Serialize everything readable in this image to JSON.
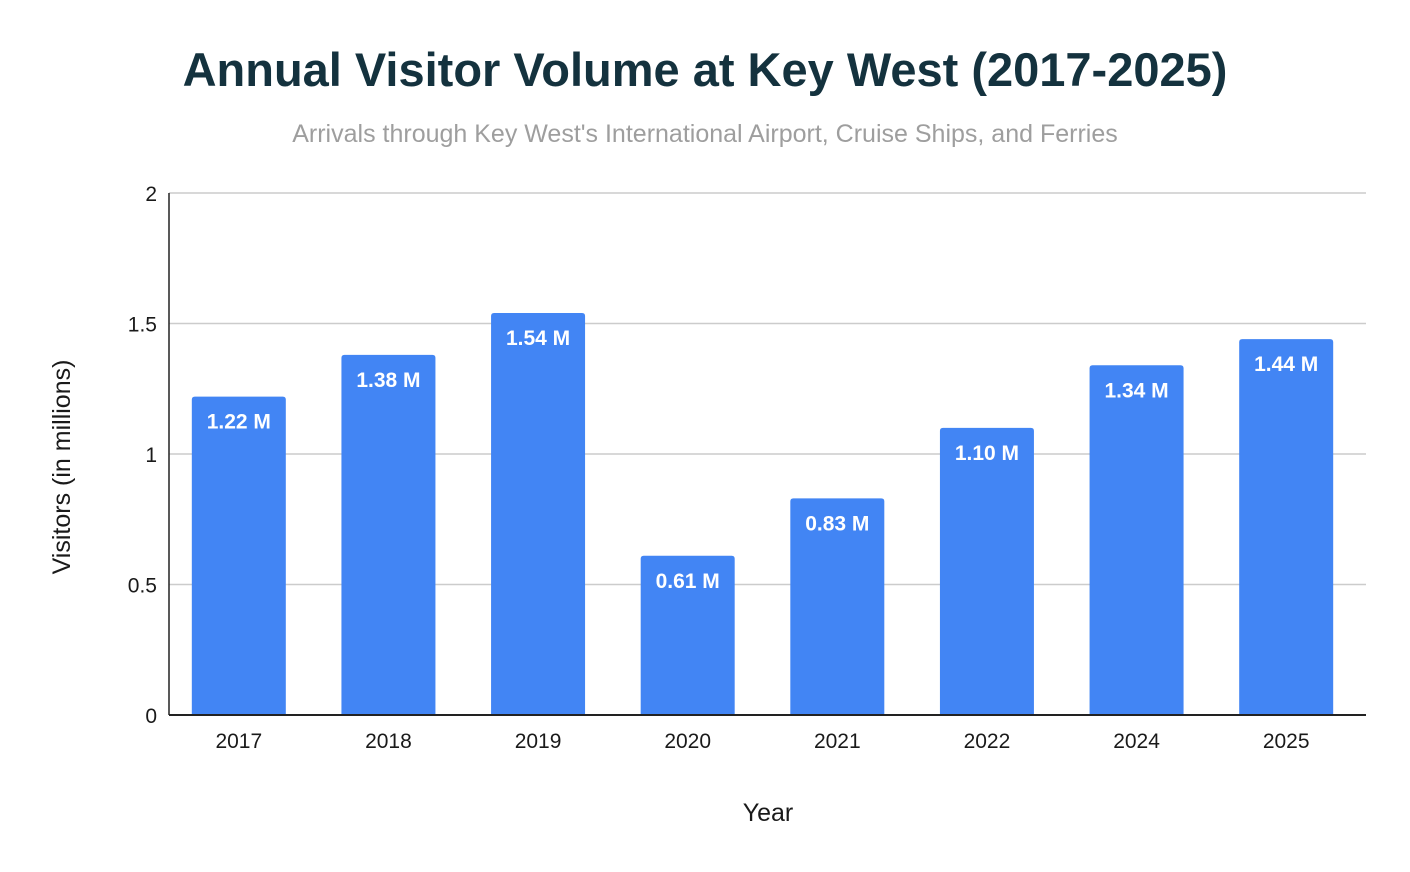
{
  "chart_data": {
    "type": "bar",
    "title": "Annual Visitor Volume at Key West (2017-2025)",
    "subtitle": "Arrivals through Key West's International Airport, Cruise Ships, and Ferries",
    "xlabel": "Year",
    "ylabel": "Visitors (in millions)",
    "categories": [
      "2017",
      "2018",
      "2019",
      "2020",
      "2021",
      "2022",
      "2024",
      "2025"
    ],
    "values": [
      1.22,
      1.38,
      1.54,
      0.61,
      0.83,
      1.1,
      1.34,
      1.44
    ],
    "data_labels": [
      "1.22 M",
      "1.38 M",
      "1.54 M",
      "0.61 M",
      "0.83 M",
      "1.10 M",
      "1.34 M",
      "1.44 M"
    ],
    "ylim": [
      0,
      2
    ],
    "yticks": [
      0,
      0.5,
      1,
      1.5,
      2
    ],
    "ytick_labels": [
      "0",
      "0.5",
      "1",
      "1.5",
      "2"
    ],
    "grid": true,
    "legend": "none",
    "bar_color": "#4285f4",
    "title_color": "#14323e",
    "subtitle_color": "#9e9e9e"
  }
}
